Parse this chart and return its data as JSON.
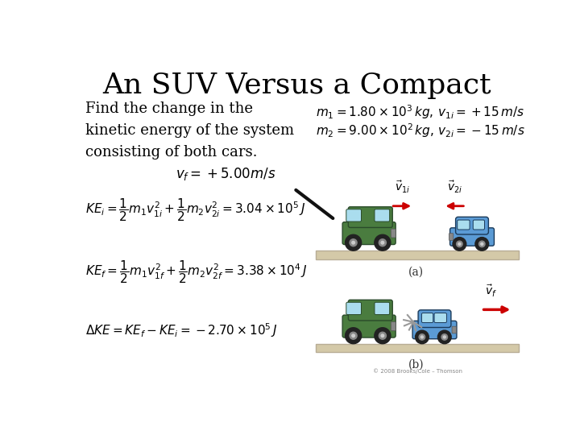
{
  "title": "An SUV Versus a Compact",
  "title_fontsize": 26,
  "bg_color": "#ffffff",
  "text_color": "#000000",
  "problem_lines": [
    "Find the change in the",
    "kinetic energy of the system",
    "consisting of both cars."
  ],
  "given_line1": "$m_1 = 1.80 \\times 10^3\\,kg,\\, v_{1i} = +15\\,m/s$",
  "given_line2": "$m_2 = 9.00 \\times 10^2\\,kg,\\, v_{2i} = -15\\,m/s$",
  "vf_text": "$v_f = +5.00m/s$",
  "eq_KEi": "$KE_i = \\dfrac{1}{2}m_1v_{1i}^2 + \\dfrac{1}{2}m_2v_{2i}^2 = 3.04 \\times 10^5\\,J$",
  "eq_KEf": "$KE_f = \\dfrac{1}{2}m_1v_{1f}^2 + \\dfrac{1}{2}m_2v_{2f}^2 = 3.38 \\times 10^4\\,J$",
  "eq_DKE": "$\\Delta KE = KE_f - KE_i = -2.70 \\times 10^5\\,J$",
  "suv_color": "#4a7c3f",
  "compact_color": "#5b9bd5",
  "wheel_color": "#222222",
  "wheel_inner": "#666666",
  "road_color": "#d4c9a8",
  "road_edge": "#b8ad96",
  "arrow_color": "#cc0000",
  "spark_color": "#aaaaaa",
  "diag_arrow_color": "#111111",
  "label_color": "#333333"
}
